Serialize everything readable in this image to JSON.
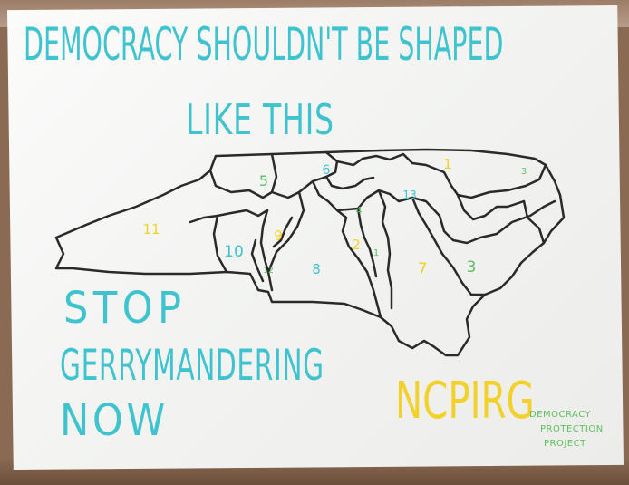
{
  "banner": {
    "headline_line1": "DEMOCRACY SHOULDN'T BE SHAPED",
    "headline_line2": "LIKE THIS",
    "call_line1": "STOP",
    "call_line2": "GERRYMANDERING",
    "call_line3": "NOW",
    "organization": "NCPIRG",
    "project_line1": "DEMOCRACY",
    "project_line2": "PROTECTION",
    "project_line3": "PROJECT"
  },
  "map": {
    "districts": [
      {
        "label": "1",
        "color": "#f3d12c"
      },
      {
        "label": "2",
        "color": "#f3d12c"
      },
      {
        "label": "3",
        "color": "#5fbf5f"
      },
      {
        "label": "3",
        "color": "#5fbf5f"
      },
      {
        "label": "4",
        "color": "#5fbf5f"
      },
      {
        "label": "5",
        "color": "#5fbf5f"
      },
      {
        "label": "6",
        "color": "#3fc3cf"
      },
      {
        "label": "7",
        "color": "#f3d12c"
      },
      {
        "label": "8",
        "color": "#3fc3cf"
      },
      {
        "label": "9",
        "color": "#f3d12c"
      },
      {
        "label": "10",
        "color": "#3fc3cf"
      },
      {
        "label": "11",
        "color": "#f3d12c"
      },
      {
        "label": "12",
        "color": "#5fbf5f"
      },
      {
        "label": "13",
        "color": "#3fc3cf"
      },
      {
        "label": "1",
        "color": "#5fbf5f"
      }
    ]
  },
  "colors": {
    "teal_paint": "#3fc3cf",
    "yellow_paint": "#f3d12c",
    "green_paint": "#5fbf5f",
    "outline": "#2a2a2a"
  }
}
